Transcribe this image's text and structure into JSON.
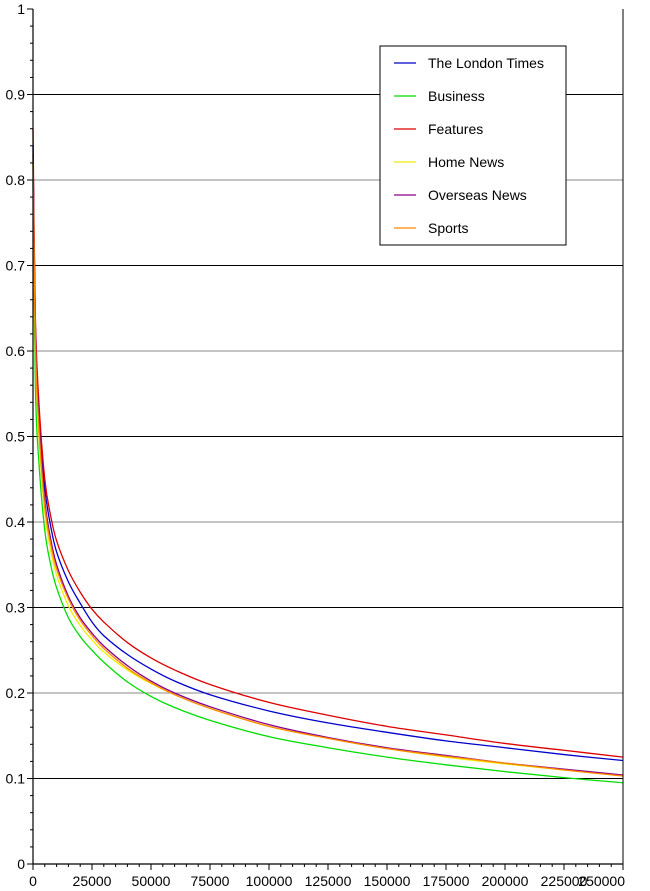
{
  "chart_data": {
    "type": "line",
    "title": "",
    "xlabel": "",
    "ylabel": "",
    "xlim": [
      0,
      250000
    ],
    "ylim": [
      0,
      1
    ],
    "x_ticks": [
      "0",
      "25000",
      "50000",
      "75000",
      "100000",
      "125000",
      "150000",
      "175000",
      "200000",
      "225000",
      "250000"
    ],
    "y_ticks": [
      "0",
      "0.1",
      "0.2",
      "0.3",
      "0.4",
      "0.5",
      "0.6",
      "0.7",
      "0.8",
      "0.9",
      "1"
    ],
    "grid": "horizontal",
    "legend": "top-right",
    "series": [
      {
        "name": "The London Times",
        "color": "#0000cc",
        "x": [
          0,
          1000,
          2500,
          5000,
          7500,
          10000,
          15000,
          20000,
          25000,
          30000,
          40000,
          50000,
          60000,
          75000,
          100000,
          125000,
          150000,
          175000,
          200000,
          225000,
          250000
        ],
        "y": [
          0.84,
          0.63,
          0.53,
          0.44,
          0.395,
          0.365,
          0.33,
          0.305,
          0.283,
          0.267,
          0.245,
          0.228,
          0.214,
          0.198,
          0.179,
          0.165,
          0.154,
          0.144,
          0.136,
          0.128,
          0.121
        ]
      },
      {
        "name": "Business",
        "color": "#00dd00",
        "x": [
          0,
          1000,
          2500,
          5000,
          7500,
          10000,
          15000,
          20000,
          25000,
          30000,
          40000,
          50000,
          60000,
          75000,
          100000,
          125000,
          150000,
          175000,
          200000,
          225000,
          250000
        ],
        "y": [
          0.8,
          0.56,
          0.47,
          0.39,
          0.35,
          0.323,
          0.288,
          0.266,
          0.25,
          0.236,
          0.213,
          0.196,
          0.183,
          0.168,
          0.149,
          0.136,
          0.125,
          0.116,
          0.108,
          0.101,
          0.095
        ]
      },
      {
        "name": "Features",
        "color": "#dd0000",
        "x": [
          0,
          1000,
          2500,
          5000,
          7500,
          10000,
          15000,
          20000,
          25000,
          30000,
          40000,
          50000,
          60000,
          75000,
          100000,
          125000,
          150000,
          175000,
          200000,
          225000,
          250000
        ],
        "y": [
          0.86,
          0.64,
          0.54,
          0.45,
          0.407,
          0.378,
          0.343,
          0.318,
          0.298,
          0.283,
          0.259,
          0.241,
          0.227,
          0.21,
          0.189,
          0.174,
          0.161,
          0.151,
          0.141,
          0.133,
          0.125
        ]
      },
      {
        "name": "Home News",
        "color": "#eeee00",
        "x": [
          0,
          1000,
          2500,
          5000,
          7500,
          10000,
          15000,
          20000,
          25000,
          30000,
          40000,
          50000,
          60000,
          75000,
          100000,
          125000,
          150000,
          175000,
          200000,
          225000,
          250000
        ],
        "y": [
          0.82,
          0.6,
          0.5,
          0.41,
          0.367,
          0.338,
          0.302,
          0.279,
          0.262,
          0.248,
          0.227,
          0.211,
          0.198,
          0.182,
          0.161,
          0.147,
          0.135,
          0.125,
          0.117,
          0.11,
          0.103
        ]
      },
      {
        "name": "Overseas News",
        "color": "#880088",
        "x": [
          0,
          1000,
          2500,
          5000,
          7500,
          10000,
          15000,
          20000,
          25000,
          30000,
          40000,
          50000,
          60000,
          75000,
          100000,
          125000,
          150000,
          175000,
          200000,
          225000,
          250000
        ],
        "y": [
          0.83,
          0.62,
          0.52,
          0.425,
          0.38,
          0.35,
          0.313,
          0.288,
          0.27,
          0.255,
          0.232,
          0.214,
          0.2,
          0.184,
          0.163,
          0.148,
          0.136,
          0.127,
          0.118,
          0.111,
          0.104
        ]
      },
      {
        "name": "Sports",
        "color": "#ff8800",
        "x": [
          0,
          1000,
          2500,
          5000,
          7500,
          10000,
          15000,
          20000,
          25000,
          30000,
          40000,
          50000,
          60000,
          75000,
          100000,
          125000,
          150000,
          175000,
          200000,
          225000,
          250000
        ],
        "y": [
          0.82,
          0.61,
          0.51,
          0.418,
          0.374,
          0.345,
          0.31,
          0.285,
          0.267,
          0.252,
          0.229,
          0.212,
          0.198,
          0.182,
          0.161,
          0.147,
          0.135,
          0.126,
          0.118,
          0.11,
          0.103
        ]
      }
    ]
  }
}
